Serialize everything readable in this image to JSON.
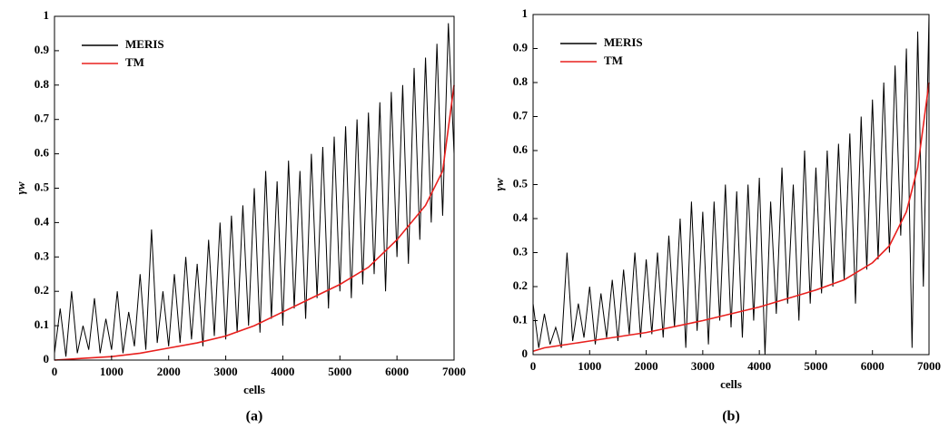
{
  "chart_data": [
    {
      "type": "line",
      "panel_label": "(a)",
      "xlabel": "cells",
      "ylabel": "γw",
      "xlim": [
        0,
        7000
      ],
      "ylim": [
        0,
        1
      ],
      "xticks": [
        0,
        1000,
        2000,
        3000,
        4000,
        5000,
        6000,
        7000
      ],
      "yticks": [
        0,
        0.1,
        0.2,
        0.3,
        0.4,
        0.5,
        0.6,
        0.7,
        0.8,
        0.9,
        1
      ],
      "legend": "upper left",
      "series": [
        {
          "name": "MERIS",
          "color": "#000000",
          "x": [
            0,
            100,
            200,
            300,
            400,
            500,
            600,
            700,
            800,
            900,
            1000,
            1100,
            1200,
            1300,
            1400,
            1500,
            1600,
            1700,
            1800,
            1900,
            2000,
            2100,
            2200,
            2300,
            2400,
            2500,
            2600,
            2700,
            2800,
            2900,
            3000,
            3100,
            3200,
            3300,
            3400,
            3500,
            3600,
            3700,
            3800,
            3900,
            4000,
            4100,
            4200,
            4300,
            4400,
            4500,
            4600,
            4700,
            4800,
            4900,
            5000,
            5100,
            5200,
            5300,
            5400,
            5500,
            5600,
            5700,
            5800,
            5900,
            6000,
            6100,
            6200,
            6300,
            6400,
            6500,
            6600,
            6700,
            6800,
            6900,
            7000
          ],
          "values": [
            0.02,
            0.15,
            0.01,
            0.2,
            0.02,
            0.1,
            0.03,
            0.18,
            0.02,
            0.12,
            0.03,
            0.2,
            0.02,
            0.14,
            0.04,
            0.25,
            0.03,
            0.38,
            0.05,
            0.2,
            0.04,
            0.25,
            0.05,
            0.3,
            0.06,
            0.28,
            0.04,
            0.35,
            0.07,
            0.4,
            0.06,
            0.42,
            0.08,
            0.45,
            0.1,
            0.5,
            0.08,
            0.55,
            0.12,
            0.52,
            0.1,
            0.58,
            0.15,
            0.55,
            0.12,
            0.6,
            0.18,
            0.62,
            0.15,
            0.65,
            0.2,
            0.68,
            0.18,
            0.7,
            0.22,
            0.72,
            0.25,
            0.75,
            0.2,
            0.78,
            0.3,
            0.8,
            0.28,
            0.85,
            0.35,
            0.88,
            0.4,
            0.92,
            0.42,
            0.98,
            0.6
          ]
        },
        {
          "name": "TM",
          "color": "#e8201e",
          "x": [
            0,
            500,
            1000,
            1500,
            2000,
            2500,
            3000,
            3500,
            4000,
            4500,
            5000,
            5500,
            6000,
            6500,
            6800,
            7000
          ],
          "values": [
            0,
            0.005,
            0.01,
            0.02,
            0.035,
            0.05,
            0.07,
            0.1,
            0.14,
            0.18,
            0.22,
            0.27,
            0.35,
            0.45,
            0.55,
            0.8
          ]
        }
      ]
    },
    {
      "type": "line",
      "panel_label": "(b)",
      "xlabel": "cells",
      "ylabel": "γw",
      "xlim": [
        0,
        7000
      ],
      "ylim": [
        0,
        1
      ],
      "xticks": [
        0,
        1000,
        2000,
        3000,
        4000,
        5000,
        6000,
        7000
      ],
      "yticks": [
        0,
        0.1,
        0.2,
        0.3,
        0.4,
        0.5,
        0.6,
        0.7,
        0.8,
        0.9,
        1
      ],
      "legend": "upper left",
      "series": [
        {
          "name": "MERIS",
          "color": "#000000",
          "x": [
            0,
            100,
            200,
            300,
            400,
            500,
            600,
            700,
            800,
            900,
            1000,
            1100,
            1200,
            1300,
            1400,
            1500,
            1600,
            1700,
            1800,
            1900,
            2000,
            2100,
            2200,
            2300,
            2400,
            2500,
            2600,
            2700,
            2800,
            2900,
            3000,
            3100,
            3200,
            3300,
            3400,
            3500,
            3600,
            3700,
            3800,
            3900,
            4000,
            4100,
            4200,
            4300,
            4400,
            4500,
            4600,
            4700,
            4800,
            4900,
            5000,
            5100,
            5200,
            5300,
            5400,
            5500,
            5600,
            5700,
            5800,
            5900,
            6000,
            6100,
            6200,
            6300,
            6400,
            6500,
            6600,
            6700,
            6800,
            6900,
            7000
          ],
          "values": [
            0.15,
            0.02,
            0.12,
            0.03,
            0.08,
            0.02,
            0.3,
            0.04,
            0.15,
            0.05,
            0.2,
            0.03,
            0.18,
            0.05,
            0.22,
            0.04,
            0.25,
            0.06,
            0.3,
            0.05,
            0.28,
            0.06,
            0.3,
            0.05,
            0.35,
            0.08,
            0.4,
            0.02,
            0.45,
            0.07,
            0.42,
            0.03,
            0.45,
            0.1,
            0.5,
            0.08,
            0.48,
            0.05,
            0.5,
            0.1,
            0.52,
            0.0,
            0.45,
            0.12,
            0.55,
            0.15,
            0.5,
            0.1,
            0.6,
            0.15,
            0.55,
            0.18,
            0.6,
            0.2,
            0.62,
            0.22,
            0.65,
            0.15,
            0.7,
            0.25,
            0.75,
            0.28,
            0.8,
            0.3,
            0.85,
            0.35,
            0.9,
            0.02,
            0.95,
            0.2,
            1.0
          ]
        },
        {
          "name": "TM",
          "color": "#e8201e",
          "x": [
            0,
            200,
            1000,
            2000,
            3000,
            4000,
            5000,
            5500,
            6000,
            6300,
            6600,
            6800,
            7000
          ],
          "values": [
            0.01,
            0.02,
            0.04,
            0.065,
            0.1,
            0.14,
            0.19,
            0.22,
            0.27,
            0.32,
            0.42,
            0.55,
            0.8
          ]
        }
      ]
    }
  ]
}
